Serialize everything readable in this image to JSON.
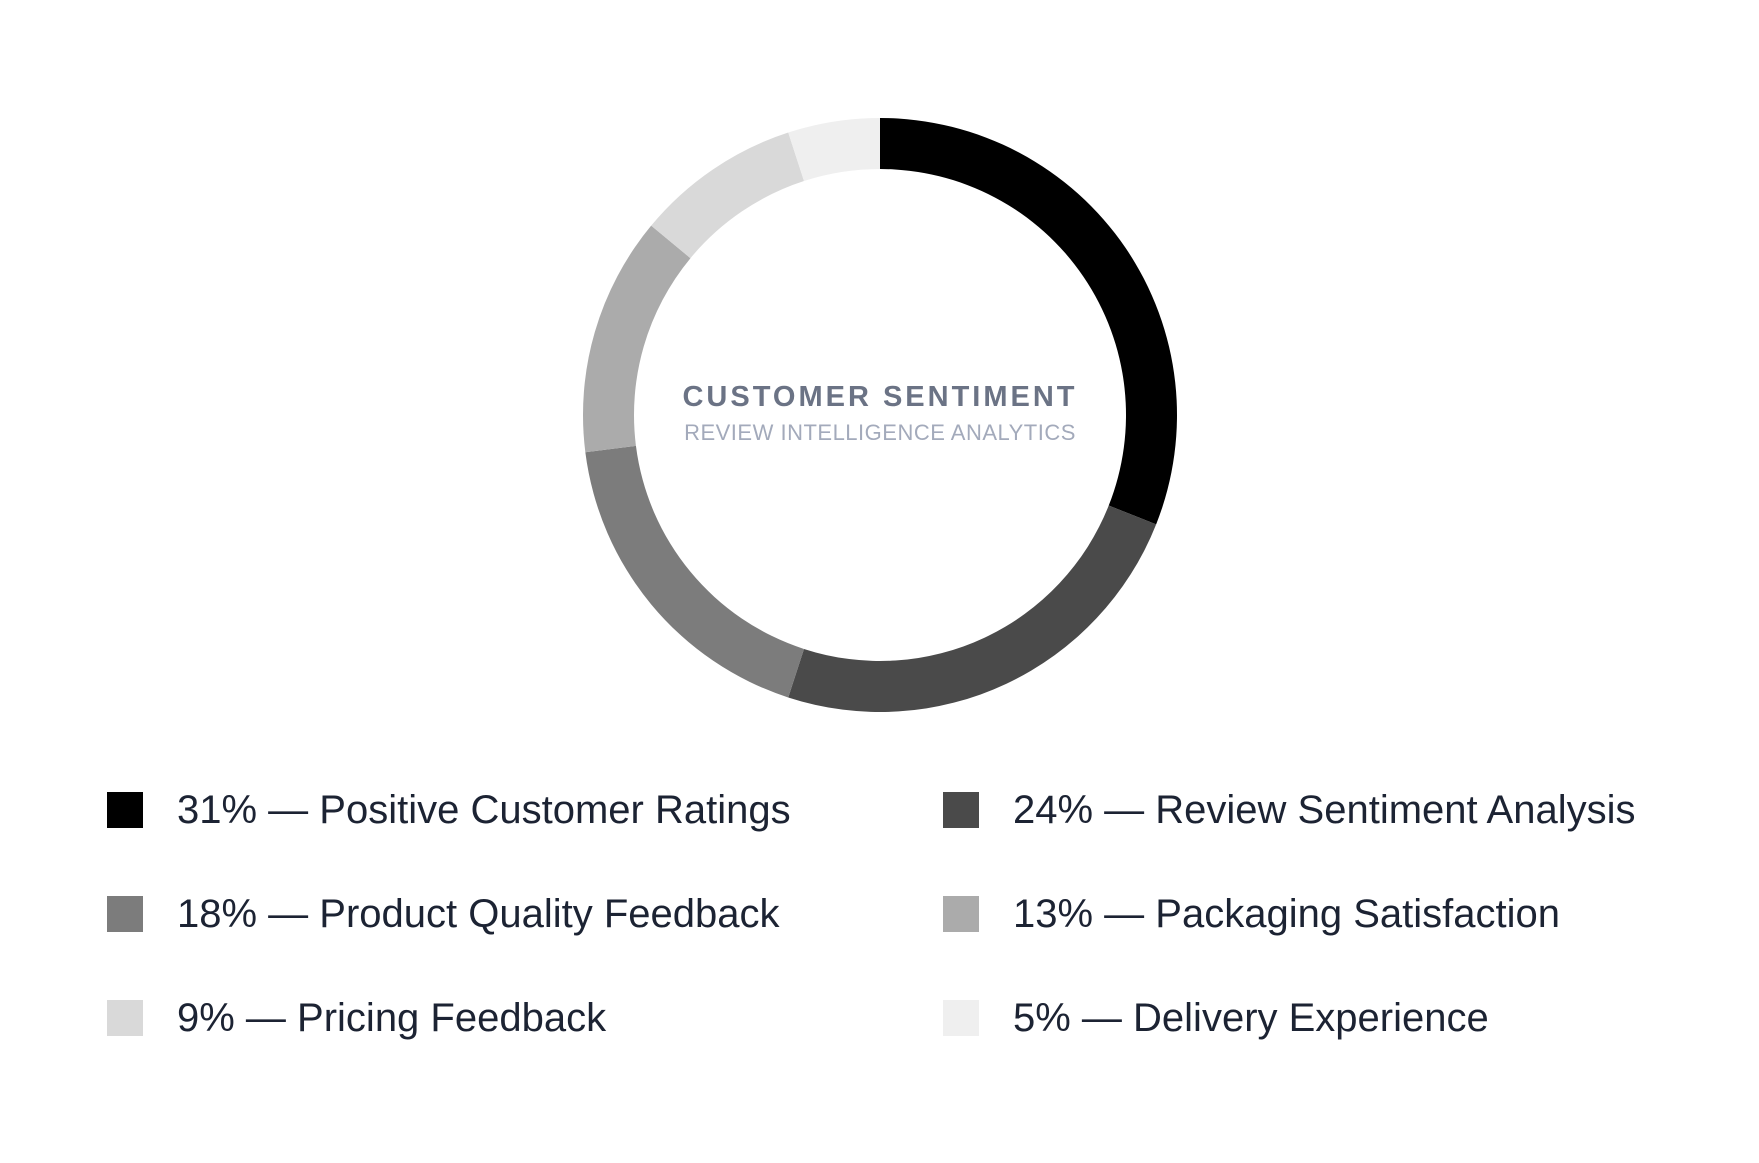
{
  "chart_data": {
    "type": "pie",
    "variant": "donut",
    "title": "CUSTOMER SENTIMENT",
    "subtitle": "REVIEW INTELLIGENCE ANALYTICS",
    "slices": [
      {
        "label": "Positive Customer Ratings",
        "value": 31,
        "display": "31% — Positive Customer Ratings",
        "color": "#000000"
      },
      {
        "label": "Review Sentiment Analysis",
        "value": 24,
        "display": "24% — Review Sentiment Analysis",
        "color": "#4a4a4a"
      },
      {
        "label": "Product Quality Feedback",
        "value": 18,
        "display": "18% — Product Quality Feedback",
        "color": "#7c7c7c"
      },
      {
        "label": "Packaging Satisfaction",
        "value": 13,
        "display": "13% — Packaging Satisfaction",
        "color": "#ababab"
      },
      {
        "label": "Pricing Feedback",
        "value": 9,
        "display": "9% — Pricing Feedback",
        "color": "#d9d9d9"
      },
      {
        "label": "Delivery Experience",
        "value": 5,
        "display": "5% — Delivery Experience",
        "color": "#efefef"
      }
    ],
    "legend_position": "bottom"
  }
}
